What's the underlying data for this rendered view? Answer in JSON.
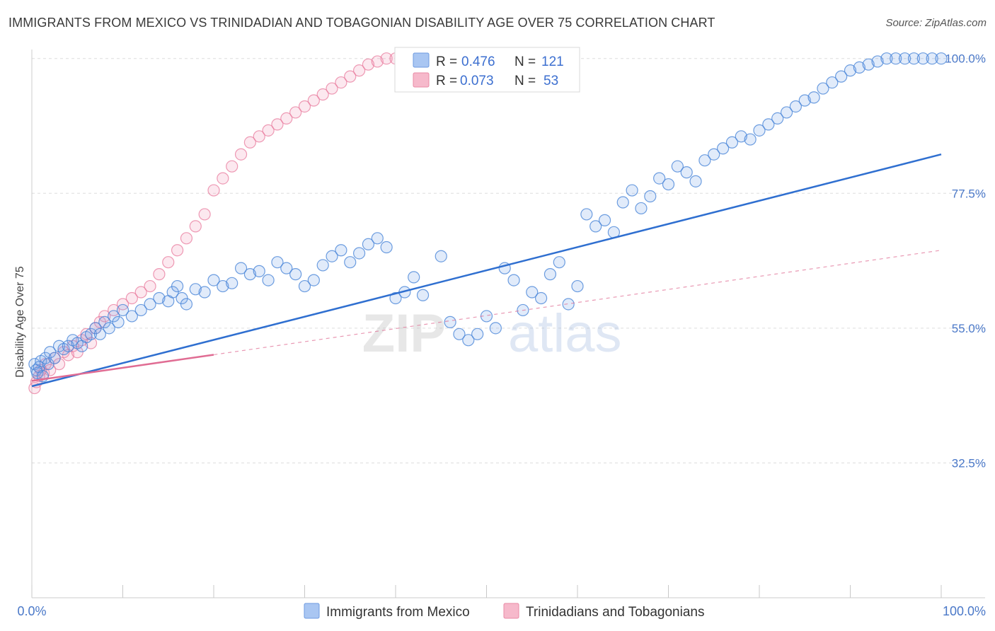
{
  "title": "IMMIGRANTS FROM MEXICO VS TRINIDADIAN AND TOBAGONIAN DISABILITY AGE OVER 75 CORRELATION CHART",
  "source": "Source: ZipAtlas.com",
  "watermark": {
    "zip": "ZIP",
    "atlas": "atlas"
  },
  "legend": {
    "rows": [
      {
        "r_label": "R =",
        "r_value": "0.476",
        "n_label": "N =",
        "n_value": "121",
        "color": "#a9c6f2",
        "stroke": "#6e9be0"
      },
      {
        "r_label": "R =",
        "r_value": "0.073",
        "n_label": "N =",
        "n_value": "53",
        "color": "#f6b9cb",
        "stroke": "#e98aa6"
      }
    ]
  },
  "colors": {
    "blue": "#4a86d8",
    "blue_fill": "rgba(120,165,230,0.22)",
    "pink": "#e8799c",
    "pink_fill": "rgba(240,150,180,0.22)",
    "blue_line": "#2f6fd0",
    "pink_line": "#e06c93"
  },
  "chart_data": {
    "type": "scatter",
    "xlabel": "",
    "ylabel": "Disability Age Over 75",
    "xlim": [
      0,
      100
    ],
    "ylim": [
      10,
      101.5
    ],
    "x_tick_labels": [
      "0.0%",
      "100.0%"
    ],
    "y_ticks": [
      32.5,
      55.0,
      77.5,
      100.0
    ],
    "y_tick_labels": [
      "32.5%",
      "55.0%",
      "77.5%",
      "100.0%"
    ],
    "grid": true,
    "legend_position": "top-center",
    "series": [
      {
        "name": "Immigrants from Mexico",
        "points": [
          [
            0.3,
            49
          ],
          [
            0.5,
            48
          ],
          [
            0.6,
            47.5
          ],
          [
            0.8,
            48.5
          ],
          [
            1.0,
            49.5
          ],
          [
            1.2,
            47
          ],
          [
            1.5,
            50
          ],
          [
            1.8,
            49
          ],
          [
            2.0,
            51
          ],
          [
            2.5,
            50
          ],
          [
            3.0,
            52
          ],
          [
            3.5,
            51.5
          ],
          [
            4.0,
            52
          ],
          [
            4.5,
            53
          ],
          [
            5.0,
            52.5
          ],
          [
            5.5,
            52
          ],
          [
            6.0,
            53.5
          ],
          [
            6.5,
            54
          ],
          [
            7.0,
            55
          ],
          [
            7.5,
            54
          ],
          [
            8.0,
            56
          ],
          [
            8.5,
            55
          ],
          [
            9.0,
            57
          ],
          [
            9.5,
            56
          ],
          [
            10.0,
            58
          ],
          [
            11.0,
            57
          ],
          [
            12.0,
            58
          ],
          [
            13.0,
            59
          ],
          [
            14.0,
            60
          ],
          [
            15.0,
            59.5
          ],
          [
            15.5,
            61
          ],
          [
            16.0,
            62
          ],
          [
            16.5,
            60
          ],
          [
            17.0,
            59
          ],
          [
            18.0,
            61.5
          ],
          [
            19.0,
            61
          ],
          [
            20.0,
            63
          ],
          [
            21.0,
            62
          ],
          [
            22.0,
            62.5
          ],
          [
            23.0,
            65
          ],
          [
            24.0,
            64
          ],
          [
            25.0,
            64.5
          ],
          [
            26.0,
            63
          ],
          [
            27.0,
            66
          ],
          [
            28.0,
            65
          ],
          [
            29.0,
            64
          ],
          [
            30.0,
            62
          ],
          [
            31.0,
            63
          ],
          [
            32.0,
            65.5
          ],
          [
            33.0,
            67
          ],
          [
            34.0,
            68
          ],
          [
            35.0,
            66
          ],
          [
            36.0,
            67.5
          ],
          [
            37.0,
            69
          ],
          [
            38.0,
            70
          ],
          [
            39.0,
            68.5
          ],
          [
            40.0,
            60
          ],
          [
            41.0,
            61
          ],
          [
            42.0,
            63.5
          ],
          [
            43.0,
            60.5
          ],
          [
            45.0,
            67
          ],
          [
            46.0,
            56
          ],
          [
            47.0,
            54
          ],
          [
            48.0,
            53
          ],
          [
            49.0,
            54
          ],
          [
            50.0,
            57
          ],
          [
            51.0,
            55
          ],
          [
            52.0,
            65
          ],
          [
            53.0,
            63
          ],
          [
            54.0,
            58
          ],
          [
            55.0,
            61
          ],
          [
            56.0,
            60
          ],
          [
            57.0,
            64
          ],
          [
            58.0,
            66
          ],
          [
            59.0,
            59
          ],
          [
            60.0,
            62
          ],
          [
            61.0,
            74
          ],
          [
            62.0,
            72
          ],
          [
            63.0,
            73
          ],
          [
            64.0,
            71
          ],
          [
            65.0,
            76
          ],
          [
            66.0,
            78
          ],
          [
            67.0,
            75
          ],
          [
            68.0,
            77
          ],
          [
            69.0,
            80
          ],
          [
            70.0,
            79
          ],
          [
            71.0,
            82
          ],
          [
            72.0,
            81
          ],
          [
            73.0,
            79.5
          ],
          [
            74.0,
            83
          ],
          [
            75.0,
            84
          ],
          [
            76.0,
            85
          ],
          [
            77.0,
            86
          ],
          [
            78.0,
            87
          ],
          [
            79.0,
            86.5
          ],
          [
            80.0,
            88
          ],
          [
            81.0,
            89
          ],
          [
            82.0,
            90
          ],
          [
            83.0,
            91
          ],
          [
            84.0,
            92
          ],
          [
            85.0,
            93
          ],
          [
            86.0,
            93.5
          ],
          [
            87.0,
            95
          ],
          [
            88.0,
            96
          ],
          [
            89.0,
            97
          ],
          [
            90.0,
            98
          ],
          [
            91.0,
            98.5
          ],
          [
            92.0,
            99
          ],
          [
            93.0,
            99.5
          ],
          [
            94.0,
            100
          ],
          [
            95.0,
            100
          ],
          [
            96.0,
            100
          ],
          [
            97.0,
            100
          ],
          [
            98.0,
            100
          ],
          [
            99.0,
            100
          ],
          [
            100.0,
            100
          ]
        ]
      },
      {
        "name": "Trinidadians and Tobagonians",
        "points": [
          [
            0.3,
            45
          ],
          [
            0.5,
            46
          ],
          [
            0.8,
            47
          ],
          [
            1.0,
            48
          ],
          [
            1.3,
            47.5
          ],
          [
            1.5,
            49
          ],
          [
            2.0,
            48
          ],
          [
            2.5,
            50
          ],
          [
            3.0,
            49
          ],
          [
            3.5,
            51
          ],
          [
            4.0,
            50.5
          ],
          [
            4.5,
            52
          ],
          [
            5.0,
            51
          ],
          [
            5.5,
            53
          ],
          [
            6.0,
            54
          ],
          [
            6.5,
            52.5
          ],
          [
            7.0,
            55
          ],
          [
            7.5,
            56
          ],
          [
            8.0,
            57
          ],
          [
            9.0,
            58
          ],
          [
            10.0,
            59
          ],
          [
            11.0,
            60
          ],
          [
            12.0,
            61
          ],
          [
            13.0,
            62
          ],
          [
            14.0,
            64
          ],
          [
            15.0,
            66
          ],
          [
            16.0,
            68
          ],
          [
            17.0,
            70
          ],
          [
            18.0,
            72
          ],
          [
            19.0,
            74
          ],
          [
            20.0,
            78
          ],
          [
            21.0,
            80
          ],
          [
            22.0,
            82
          ],
          [
            23.0,
            84
          ],
          [
            24.0,
            86
          ],
          [
            25.0,
            87
          ],
          [
            26.0,
            88
          ],
          [
            27.0,
            89
          ],
          [
            28.0,
            90
          ],
          [
            29.0,
            91
          ],
          [
            30.0,
            92
          ],
          [
            31.0,
            93
          ],
          [
            32.0,
            94
          ],
          [
            33.0,
            95
          ],
          [
            34.0,
            96
          ],
          [
            35.0,
            97
          ],
          [
            36.0,
            98
          ],
          [
            37.0,
            99
          ],
          [
            38.0,
            99.5
          ],
          [
            39.0,
            100
          ],
          [
            40.0,
            100
          ],
          [
            41.0,
            100
          ],
          [
            42.0,
            100
          ]
        ]
      }
    ],
    "trend_lines": [
      {
        "series": "Immigrants from Mexico",
        "from": [
          0,
          45.3
        ],
        "to": [
          100,
          84
        ]
      },
      {
        "series": "Trinidadians and Tobagonians",
        "from": [
          0,
          46.2
        ],
        "to": [
          100,
          68
        ]
      }
    ]
  },
  "bottom_legend": [
    "Immigrants from Mexico",
    "Trinidadians and Tobagonians"
  ]
}
